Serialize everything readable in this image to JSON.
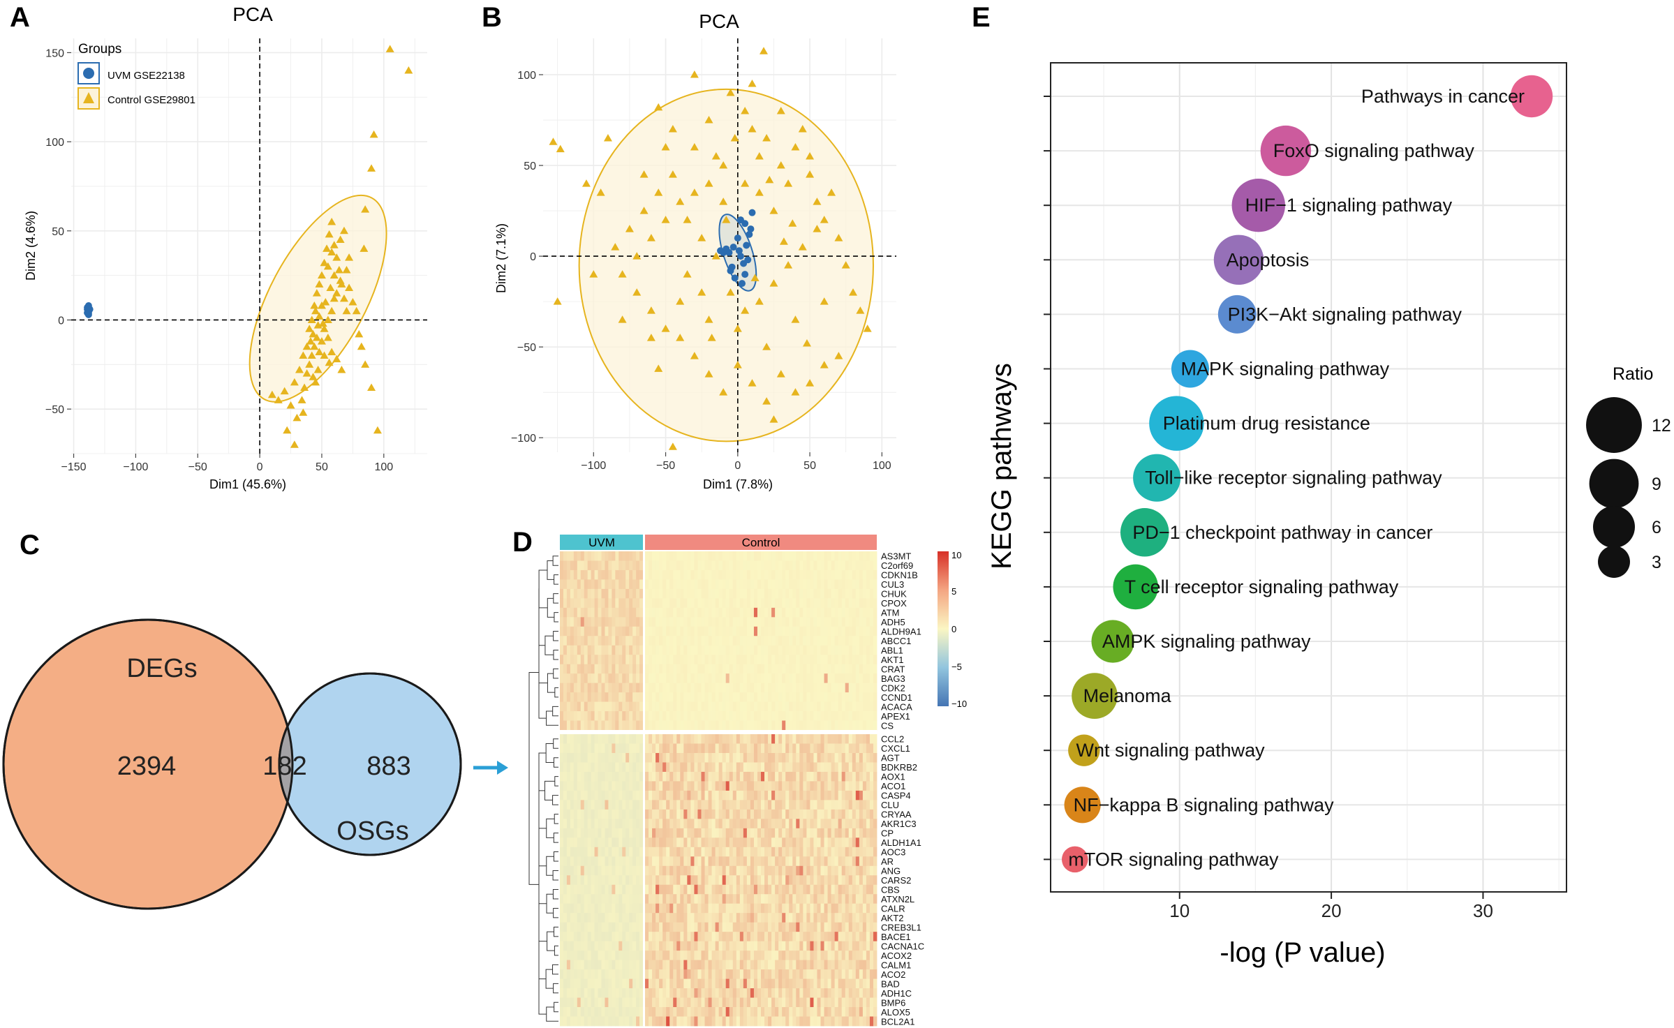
{
  "colors": {
    "uvm": "#2b6cb0",
    "control": "#e6b41e",
    "control_fill": "#fcf3d9",
    "grid": "#e8e8e8",
    "venn_left": "#f4ae85",
    "venn_right": "#b0d4ef",
    "venn_overlap": "#a4a2a5",
    "arrow": "#2a9fd6",
    "bar_uvm": "#4ec3cf",
    "bar_control": "#f08a80",
    "heat_low": "#4575b4",
    "heat_mid": "#fbf6c3",
    "heat_high": "#d73027"
  },
  "panel_labels": {
    "a": "A",
    "b": "B",
    "c": "C",
    "d": "D",
    "e": "E"
  },
  "pca_a": {
    "title": "PCA",
    "xlabel": "Dim1 (45.6%)",
    "ylabel": "Dim2 (4.6%)",
    "xlim": [
      -152,
      135
    ],
    "ylim": [
      -75,
      158
    ],
    "xticks": [
      -150,
      -100,
      -50,
      0,
      50,
      100
    ],
    "yticks": [
      -50,
      0,
      50,
      100,
      150
    ],
    "xtick_labels": [
      "−150",
      "−100",
      "−50",
      "0",
      "50",
      "100"
    ],
    "ytick_labels": [
      "−50",
      "0",
      "50",
      "100",
      "150"
    ],
    "legend_title": "Groups",
    "legend": [
      "UVM GSE22138",
      "Control GSE29801"
    ]
  },
  "pca_b": {
    "title": "PCA",
    "xlabel": "Dim1 (7.8%)",
    "ylabel": "Dim2 (7.1%)",
    "xlim": [
      -135,
      110
    ],
    "ylim": [
      -108,
      120
    ],
    "xticks": [
      -100,
      -50,
      0,
      50,
      100
    ],
    "yticks": [
      -100,
      -50,
      0,
      50,
      100
    ],
    "xtick_labels": [
      "−100",
      "−50",
      "0",
      "50",
      "100"
    ],
    "ytick_labels": [
      "−100",
      "−50",
      "0",
      "50",
      "100"
    ]
  },
  "venn": {
    "left_label": "DEGs",
    "right_label": "OSGs",
    "left_only": "2394",
    "overlap": "182",
    "right_only": "883"
  },
  "heatmap": {
    "group_uvm": "UVM",
    "group_control": "Control",
    "scale_labels": [
      "10",
      "5",
      "0",
      "−5",
      "−10"
    ],
    "genes_top": [
      "AS3MT",
      "C2orf69",
      "CDKN1B",
      "CUL3",
      "CHUK",
      "CPOX",
      "ATM",
      "ADH5",
      "ALDH9A1",
      "ABCC1",
      "ABL1",
      "AKT1",
      "CRAT",
      "BAG3",
      "CDK2",
      "CCND1",
      "ACACA",
      "APEX1",
      "CS"
    ],
    "genes_bottom": [
      "CCL2",
      "CXCL1",
      "AGT",
      "BDKRB2",
      "AOX1",
      "ACO1",
      "CASP4",
      "CLU",
      "CRYAA",
      "AKR1C3",
      "CP",
      "ALDH1A1",
      "AOC3",
      "AR",
      "ANG",
      "CARS2",
      "CBS",
      "ATXN2L",
      "CALR",
      "AKT2",
      "CREB3L1",
      "BACE1",
      "CACNA1C",
      "ACOX2",
      "CALM1",
      "ACO2",
      "BAD",
      "ADH1C",
      "BMP6",
      "ALOX5",
      "BCL2A1"
    ]
  },
  "chart_data": [
    {
      "type": "scatter",
      "panel": "A",
      "title": "PCA",
      "xlabel": "Dim1 (45.6%)",
      "ylabel": "Dim2 (4.6%)",
      "xlim": [
        -152,
        135
      ],
      "ylim": [
        -75,
        158
      ],
      "series": [
        {
          "name": "UVM GSE22138",
          "shape": "circle",
          "points": [
            [
              -138,
              8
            ],
            [
              -139,
              6
            ],
            [
              -138,
              5
            ],
            [
              -139,
              4
            ],
            [
              -138,
              3
            ],
            [
              -139,
              7
            ],
            [
              -137,
              6
            ],
            [
              -138,
              4
            ]
          ],
          "ellipse": {
            "cx": -138,
            "cy": 5.5,
            "rx": 1.5,
            "ry": 3,
            "angle": 0
          }
        },
        {
          "name": "Control GSE29801",
          "shape": "triangle",
          "points": [
            [
              105,
              152
            ],
            [
              120,
              140
            ],
            [
              92,
              104
            ],
            [
              90,
              85
            ],
            [
              85,
              62
            ],
            [
              84,
              40
            ],
            [
              72,
              35
            ],
            [
              65,
              22
            ],
            [
              60,
              12
            ],
            [
              58,
              5
            ],
            [
              55,
              0
            ],
            [
              52,
              -5
            ],
            [
              50,
              8
            ],
            [
              48,
              2
            ],
            [
              46,
              -10
            ],
            [
              44,
              -15
            ],
            [
              42,
              -20
            ],
            [
              40,
              -25
            ],
            [
              38,
              -30
            ],
            [
              36,
              -38
            ],
            [
              34,
              -45
            ],
            [
              30,
              -55
            ],
            [
              60,
              25
            ],
            [
              62,
              15
            ],
            [
              57,
              18
            ],
            [
              53,
              10
            ],
            [
              51,
              -2
            ],
            [
              47,
              -3
            ],
            [
              45,
              5
            ],
            [
              43,
              -8
            ],
            [
              41,
              -12
            ],
            [
              55,
              30
            ],
            [
              58,
              38
            ],
            [
              65,
              45
            ],
            [
              68,
              50
            ],
            [
              70,
              28
            ],
            [
              72,
              18
            ],
            [
              75,
              10
            ],
            [
              78,
              5
            ],
            [
              80,
              -8
            ],
            [
              82,
              -15
            ],
            [
              85,
              -25
            ],
            [
              90,
              -38
            ],
            [
              95,
              -62
            ],
            [
              25,
              -48
            ],
            [
              20,
              -40
            ],
            [
              15,
              -45
            ],
            [
              10,
              -42
            ],
            [
              28,
              -35
            ],
            [
              32,
              -28
            ],
            [
              35,
              -20
            ],
            [
              38,
              -15
            ],
            [
              40,
              -5
            ],
            [
              42,
              0
            ],
            [
              44,
              8
            ],
            [
              46,
              15
            ],
            [
              48,
              20
            ],
            [
              50,
              25
            ],
            [
              52,
              32
            ],
            [
              54,
              40
            ],
            [
              56,
              48
            ],
            [
              58,
              55
            ],
            [
              60,
              42
            ],
            [
              62,
              35
            ],
            [
              64,
              28
            ],
            [
              66,
              20
            ],
            [
              68,
              12
            ],
            [
              70,
              5
            ],
            [
              55,
              -10
            ],
            [
              58,
              -18
            ],
            [
              62,
              -22
            ],
            [
              66,
              -28
            ],
            [
              45,
              -35
            ],
            [
              35,
              -52
            ],
            [
              22,
              -62
            ],
            [
              28,
              -70
            ],
            [
              50,
              -12
            ],
            [
              48,
              -18
            ],
            [
              52,
              -20
            ],
            [
              56,
              -24
            ],
            [
              47,
              -28
            ],
            [
              43,
              -32
            ]
          ],
          "ellipse": {
            "cx": 47,
            "cy": 12,
            "rx": 92,
            "ry": 27,
            "angle": 62
          }
        }
      ]
    },
    {
      "type": "scatter",
      "panel": "B",
      "title": "PCA",
      "xlabel": "Dim1 (7.8%)",
      "ylabel": "Dim2 (7.1%)",
      "xlim": [
        -135,
        110
      ],
      "ylim": [
        -108,
        120
      ],
      "series": [
        {
          "name": "UVM GSE22138",
          "shape": "circle",
          "points": [
            [
              10,
              24
            ],
            [
              5,
              18
            ],
            [
              -3,
              5
            ],
            [
              2,
              0
            ],
            [
              -5,
              -8
            ],
            [
              8,
              12
            ],
            [
              4,
              -4
            ],
            [
              -2,
              -12
            ],
            [
              6,
              6
            ],
            [
              0,
              10
            ],
            [
              3,
              -15
            ],
            [
              -6,
              2
            ],
            [
              7,
              -2
            ],
            [
              1,
              3
            ],
            [
              -8,
              4
            ],
            [
              -10,
              2
            ],
            [
              9,
              15
            ],
            [
              5,
              -10
            ],
            [
              -4,
              -6
            ],
            [
              2,
              20
            ],
            [
              -12,
              3
            ]
          ],
          "ellipse": {
            "cx": 0,
            "cy": 2,
            "rx": 10,
            "ry": 22,
            "angle": 18
          }
        },
        {
          "name": "Control GSE29801",
          "shape": "triangle",
          "points": [
            [
              -30,
              100
            ],
            [
              18,
              113
            ],
            [
              -128,
              63
            ],
            [
              -123,
              59
            ],
            [
              -90,
              65
            ],
            [
              -95,
              35
            ],
            [
              -105,
              40
            ],
            [
              -100,
              -10
            ],
            [
              -125,
              -25
            ],
            [
              -55,
              82
            ],
            [
              -45,
              70
            ],
            [
              -30,
              60
            ],
            [
              -20,
              75
            ],
            [
              -10,
              50
            ],
            [
              -5,
              90
            ],
            [
              5,
              80
            ],
            [
              10,
              70
            ],
            [
              15,
              55
            ],
            [
              20,
              65
            ],
            [
              30,
              50
            ],
            [
              35,
              40
            ],
            [
              40,
              60
            ],
            [
              50,
              45
            ],
            [
              55,
              30
            ],
            [
              60,
              20
            ],
            [
              70,
              10
            ],
            [
              75,
              -5
            ],
            [
              80,
              -20
            ],
            [
              85,
              -30
            ],
            [
              90,
              -40
            ],
            [
              70,
              -55
            ],
            [
              60,
              -60
            ],
            [
              50,
              -70
            ],
            [
              40,
              -75
            ],
            [
              30,
              -65
            ],
            [
              20,
              -80
            ],
            [
              10,
              -70
            ],
            [
              0,
              -60
            ],
            [
              -10,
              -75
            ],
            [
              -20,
              -65
            ],
            [
              -30,
              -55
            ],
            [
              -40,
              -45
            ],
            [
              -50,
              -40
            ],
            [
              -60,
              -30
            ],
            [
              -70,
              -20
            ],
            [
              -80,
              -10
            ],
            [
              -85,
              5
            ],
            [
              -75,
              15
            ],
            [
              -65,
              25
            ],
            [
              -55,
              35
            ],
            [
              -45,
              45
            ],
            [
              -35,
              20
            ],
            [
              -25,
              10
            ],
            [
              -15,
              0
            ],
            [
              -5,
              -20
            ],
            [
              5,
              -30
            ],
            [
              15,
              -25
            ],
            [
              25,
              -15
            ],
            [
              35,
              -5
            ],
            [
              45,
              5
            ],
            [
              55,
              15
            ],
            [
              25,
              25
            ],
            [
              15,
              35
            ],
            [
              5,
              40
            ],
            [
              -10,
              30
            ],
            [
              -20,
              40
            ],
            [
              -30,
              35
            ],
            [
              -40,
              30
            ],
            [
              -50,
              20
            ],
            [
              -60,
              10
            ],
            [
              -70,
              0
            ],
            [
              -60,
              -45
            ],
            [
              -40,
              -25
            ],
            [
              -20,
              -35
            ],
            [
              0,
              -40
            ],
            [
              20,
              -50
            ],
            [
              40,
              -35
            ],
            [
              60,
              -25
            ],
            [
              65,
              35
            ],
            [
              45,
              70
            ],
            [
              30,
              80
            ],
            [
              -15,
              55
            ],
            [
              -50,
              60
            ],
            [
              -80,
              -35
            ],
            [
              -55,
              -62
            ],
            [
              25,
              -90
            ],
            [
              -45,
              -105
            ],
            [
              50,
              55
            ],
            [
              -25,
              -20
            ],
            [
              12,
              -12
            ],
            [
              -8,
              20
            ],
            [
              32,
              8
            ],
            [
              -35,
              -10
            ],
            [
              48,
              -48
            ],
            [
              -65,
              45
            ],
            [
              10,
              95
            ],
            [
              -2,
              65
            ],
            [
              22,
              42
            ],
            [
              -18,
              -45
            ],
            [
              38,
              18
            ]
          ],
          "ellipse": {
            "cx": -8,
            "cy": -5,
            "rx": 102,
            "ry": 97,
            "angle": 0
          }
        }
      ]
    },
    {
      "type": "bubble",
      "panel": "E",
      "xlabel": "-log (P value)",
      "ylabel": "KEGG pathways",
      "xlim": [
        1.5,
        35.5
      ],
      "xticks": [
        10,
        20,
        30
      ],
      "size_legend_title": "Ratio",
      "size_legend_values": [
        12,
        9,
        6,
        3
      ],
      "categories": [
        "Pathways in cancer",
        "FoxO signaling pathway",
        "HIF−1 signaling pathway",
        "Apoptosis",
        "PI3K−Akt signaling pathway",
        "MAPK signaling pathway",
        "Platinum drug resistance",
        "Toll−like receptor signaling pathway",
        "PD−1 checkpoint pathway in cancer",
        "T cell receptor signaling pathway",
        "AMPK signaling pathway",
        "Melanoma",
        "Wnt signaling pathway",
        "NF−kappa B signaling pathway",
        "mTOR signaling pathway"
      ],
      "x": [
        33.2,
        17.0,
        15.2,
        13.9,
        13.8,
        10.7,
        9.8,
        8.5,
        7.7,
        7.1,
        5.6,
        4.4,
        3.7,
        3.6,
        3.1
      ],
      "ratio": [
        6.1,
        9.5,
        10.8,
        9.2,
        4.8,
        4.6,
        11.5,
        8.2,
        8.6,
        7.2,
        6.3,
        7.5,
        2.9,
        4.2,
        1.7
      ],
      "colors": [
        "#e7628f",
        "#cc5b9d",
        "#a55ba9",
        "#9670b8",
        "#5b8bd0",
        "#2ea6df",
        "#24b5d6",
        "#21b6b0",
        "#1eb07f",
        "#1faf3f",
        "#68ad24",
        "#9ca927",
        "#c1a11b",
        "#d98519",
        "#e8606a"
      ]
    }
  ]
}
